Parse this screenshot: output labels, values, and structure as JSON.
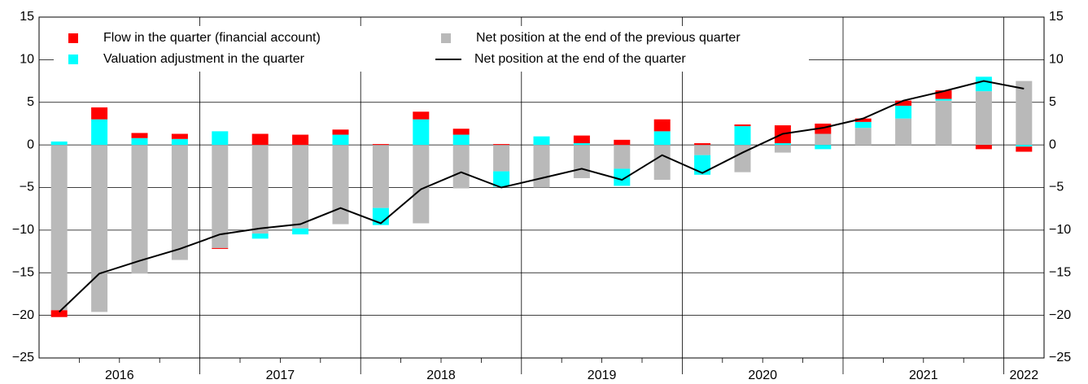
{
  "chart_data": {
    "type": "stacked-bar-line",
    "year_labels": [
      "2016",
      "2017",
      "2018",
      "2019",
      "2020",
      "2021",
      "2022"
    ],
    "series": [
      {
        "name": "Net position at the end of the previous quarter",
        "color": "#b9b9b9",
        "kind": "bar",
        "values": [
          -19.4,
          -19.6,
          -15.1,
          -13.5,
          -12.1,
          -10.4,
          -9.8,
          -9.3,
          -7.4,
          -9.2,
          -5.1,
          -3.1,
          -5.0,
          -3.9,
          -2.8,
          -4.1,
          -1.2,
          -3.2,
          -0.9,
          1.3,
          2.0,
          3.1,
          5.2,
          6.3,
          7.5
        ]
      },
      {
        "name": "Valuation adjustment in the quarter",
        "color": "#00ffff",
        "kind": "bar",
        "values": [
          0.4,
          3.0,
          0.8,
          0.7,
          1.6,
          -0.6,
          -0.7,
          1.2,
          -2.0,
          3.0,
          1.2,
          -1.8,
          1.0,
          0.2,
          -2.0,
          1.6,
          -2.3,
          2.2,
          0.2,
          -0.5,
          0.7,
          1.5,
          0.2,
          1.7,
          -0.2
        ]
      },
      {
        "name": "Flow in the quarter (financial account)",
        "color": "#ff0000",
        "kind": "bar",
        "values": [
          -0.8,
          1.4,
          0.6,
          0.6,
          -0.1,
          1.3,
          1.2,
          0.6,
          0.1,
          0.9,
          0.7,
          0.1,
          0.0,
          0.9,
          0.6,
          1.4,
          0.2,
          0.2,
          2.1,
          1.2,
          0.4,
          0.6,
          1.0,
          -0.5,
          -0.6
        ]
      },
      {
        "name": "Net position at the end of the quarter",
        "color": "#000000",
        "kind": "line",
        "values": [
          -19.6,
          -15.1,
          -13.6,
          -12.2,
          -10.5,
          -9.8,
          -9.3,
          -7.4,
          -9.2,
          -5.2,
          -3.2,
          -5.0,
          -3.9,
          -2.8,
          -4.1,
          -1.2,
          -3.3,
          -0.9,
          1.3,
          2.0,
          3.1,
          5.2,
          6.3,
          7.5,
          6.6
        ]
      }
    ],
    "ylim": [
      -25,
      15
    ],
    "yticks": [
      {
        "value": -25,
        "label": "−25"
      },
      {
        "value": -20,
        "label": "−20"
      },
      {
        "value": -15,
        "label": "−15"
      },
      {
        "value": -10,
        "label": "−10"
      },
      {
        "value": -5,
        "label": "−5"
      },
      0,
      5,
      10,
      15
    ],
    "grid": true
  }
}
